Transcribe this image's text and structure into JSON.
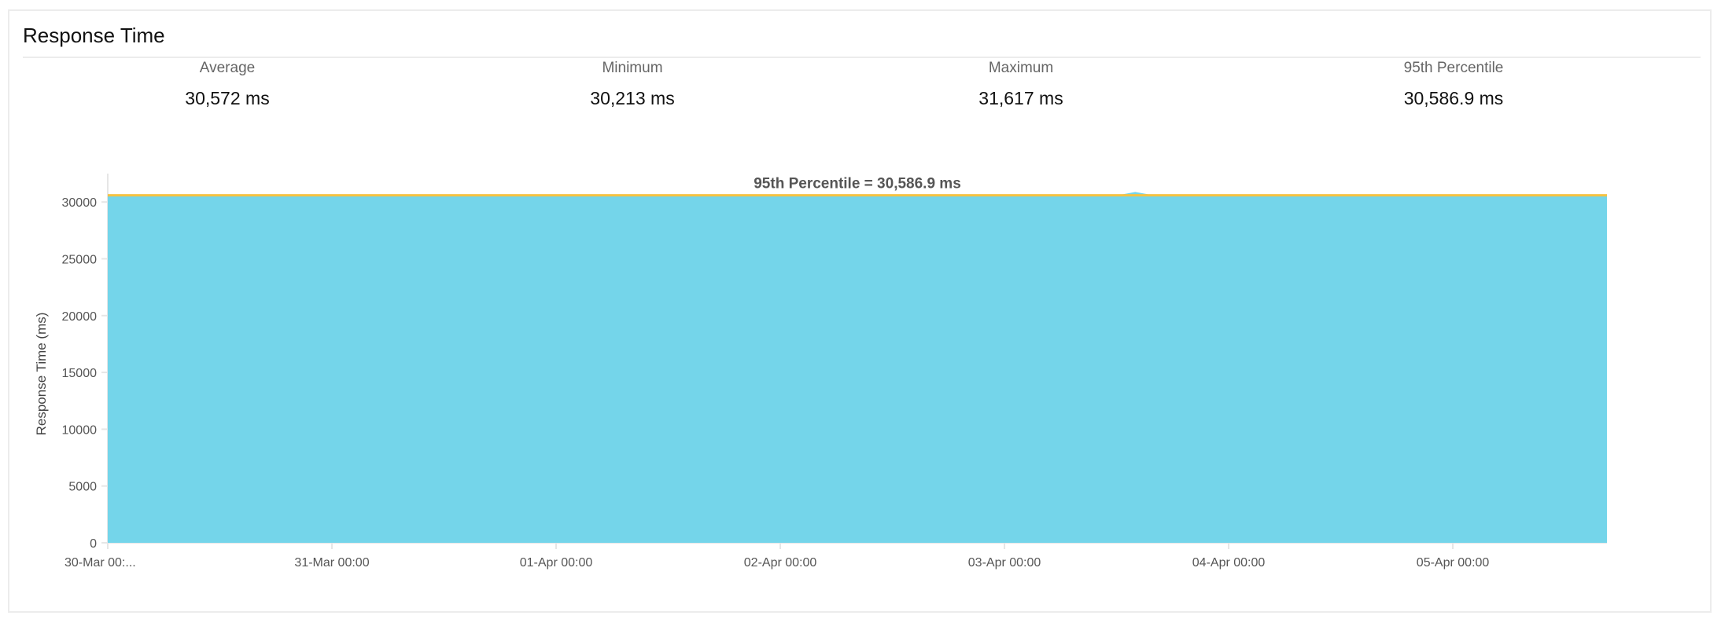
{
  "card": {
    "title": "Response Time"
  },
  "stats": [
    {
      "label": "Average",
      "value": "30,572 ms"
    },
    {
      "label": "Minimum",
      "value": "30,213 ms"
    },
    {
      "label": "Maximum",
      "value": "31,617 ms"
    },
    {
      "label": "95th Percentile",
      "value": "30,586.9 ms"
    }
  ],
  "chart_data": {
    "type": "area",
    "title": "",
    "ylabel": "Response Time (ms)",
    "xlabel": "",
    "ylim": [
      0,
      32500
    ],
    "xlim": [
      "30-Mar 00:00",
      "05-Apr 16:30"
    ],
    "yticks": [
      0,
      5000,
      10000,
      15000,
      20000,
      25000,
      30000
    ],
    "xticks": [
      "30-Mar 00:00",
      "31-Mar 00:00",
      "01-Apr 00:00",
      "02-Apr 00:00",
      "03-Apr 00:00",
      "04-Apr 00:00",
      "05-Apr 00:00"
    ],
    "xtick_labels": [
      "30-Mar 00:...",
      "31-Mar 00:00",
      "01-Apr 00:00",
      "02-Apr 00:00",
      "03-Apr 00:00",
      "04-Apr 00:00",
      "05-Apr 00:00"
    ],
    "grid": false,
    "colors": {
      "area": "#74d5ea",
      "percentile_line": "#f5c242"
    },
    "reference_line": {
      "label": "95th Percentile = 30,586.9 ms",
      "value": 30586.9
    },
    "series": [
      {
        "x": [
          "30-Mar 00:00",
          "30-Mar 06:00",
          "30-Mar 12:00",
          "30-Mar 18:00",
          "31-Mar 00:00",
          "31-Mar 06:00",
          "31-Mar 12:00",
          "31-Mar 18:00",
          "01-Apr 00:00",
          "01-Apr 06:00",
          "01-Apr 12:00",
          "01-Apr 18:00",
          "02-Apr 00:00",
          "02-Apr 06:00",
          "02-Apr 12:00",
          "02-Apr 18:00",
          "03-Apr 00:00",
          "03-Apr 06:00",
          "03-Apr 12:00",
          "03-Apr 14:00",
          "03-Apr 16:00",
          "03-Apr 18:00",
          "04-Apr 00:00",
          "04-Apr 06:00",
          "04-Apr 12:00",
          "04-Apr 18:00",
          "05-Apr 00:00",
          "05-Apr 06:00",
          "05-Apr 12:00",
          "05-Apr 16:30"
        ],
        "values": [
          30570,
          30565,
          30572,
          30568,
          30570,
          30566,
          30574,
          30569,
          30571,
          30567,
          30573,
          30570,
          30568,
          30572,
          30566,
          30570,
          30571,
          30569,
          30575,
          30880,
          30580,
          30568,
          30571,
          30567,
          30572,
          30569,
          30570,
          30566,
          30571,
          30570
        ]
      }
    ]
  }
}
